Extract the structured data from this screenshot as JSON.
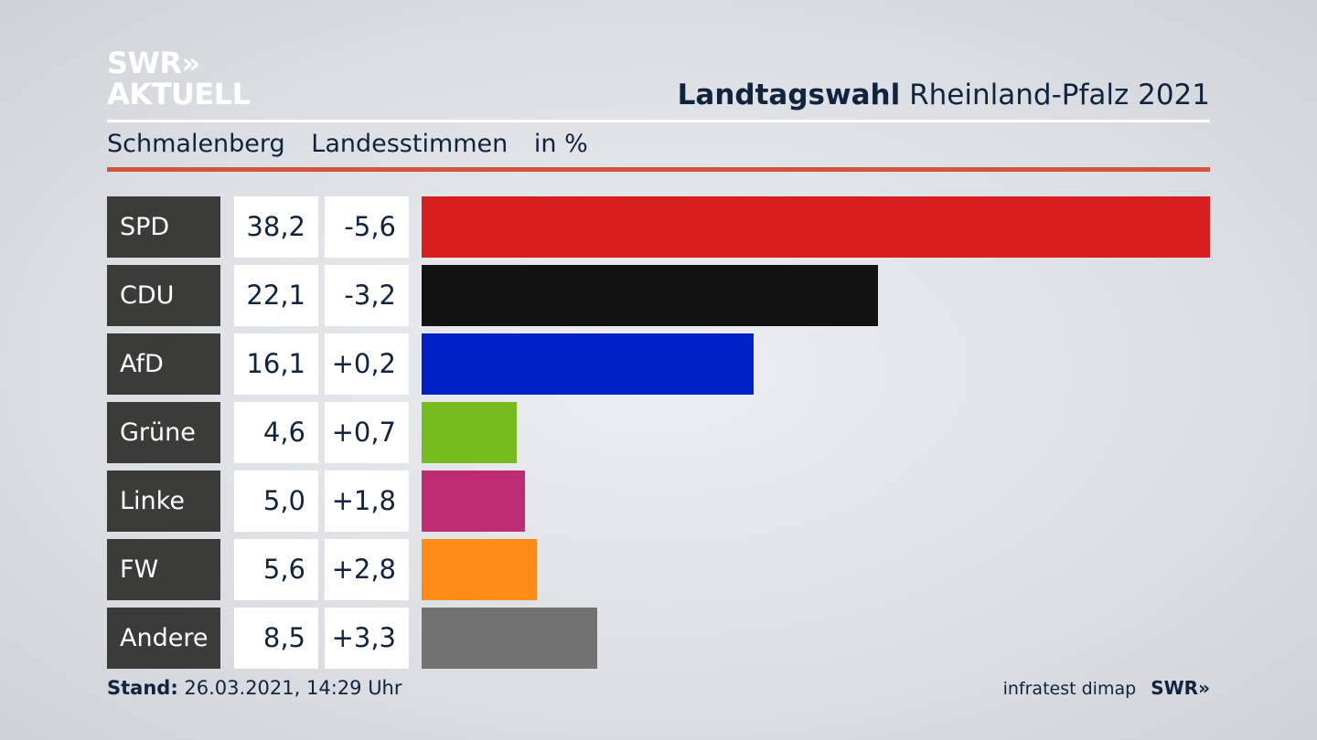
{
  "logo": {
    "line1": "SWR»",
    "line2": "AKTUELL"
  },
  "header": {
    "title_bold": "Landtagswahl",
    "title_rest": "Rheinland-Pfalz 2021"
  },
  "subtitle": {
    "place": "Schmalenberg",
    "vote_type": "Landesstimmen",
    "unit": "in %"
  },
  "colors": {
    "accent_line": "#d2553f"
  },
  "chart_data": {
    "type": "bar",
    "categories": [
      "SPD",
      "CDU",
      "AfD",
      "Grüne",
      "Linke",
      "FW",
      "Andere"
    ],
    "values": [
      38.2,
      22.1,
      16.1,
      4.6,
      5.0,
      5.6,
      8.5
    ],
    "value_labels": [
      "38,2",
      "22,1",
      "16,1",
      "4,6",
      "5,0",
      "5,6",
      "8,5"
    ],
    "diff_labels": [
      "-5,6",
      "-3,2",
      "+0,2",
      "+0,7",
      "+1,8",
      "+2,8",
      "+3,3"
    ],
    "colors": [
      "#d61f1f",
      "#121212",
      "#0021c8",
      "#77bc1f",
      "#be2c73",
      "#ff8c17",
      "#727272"
    ],
    "xlim": [
      0,
      38.2
    ]
  },
  "footer": {
    "stand_label": "Stand:",
    "stand_value": "26.03.2021, 14:29 Uhr",
    "source": "infratest dimap",
    "brand": "SWR»"
  }
}
